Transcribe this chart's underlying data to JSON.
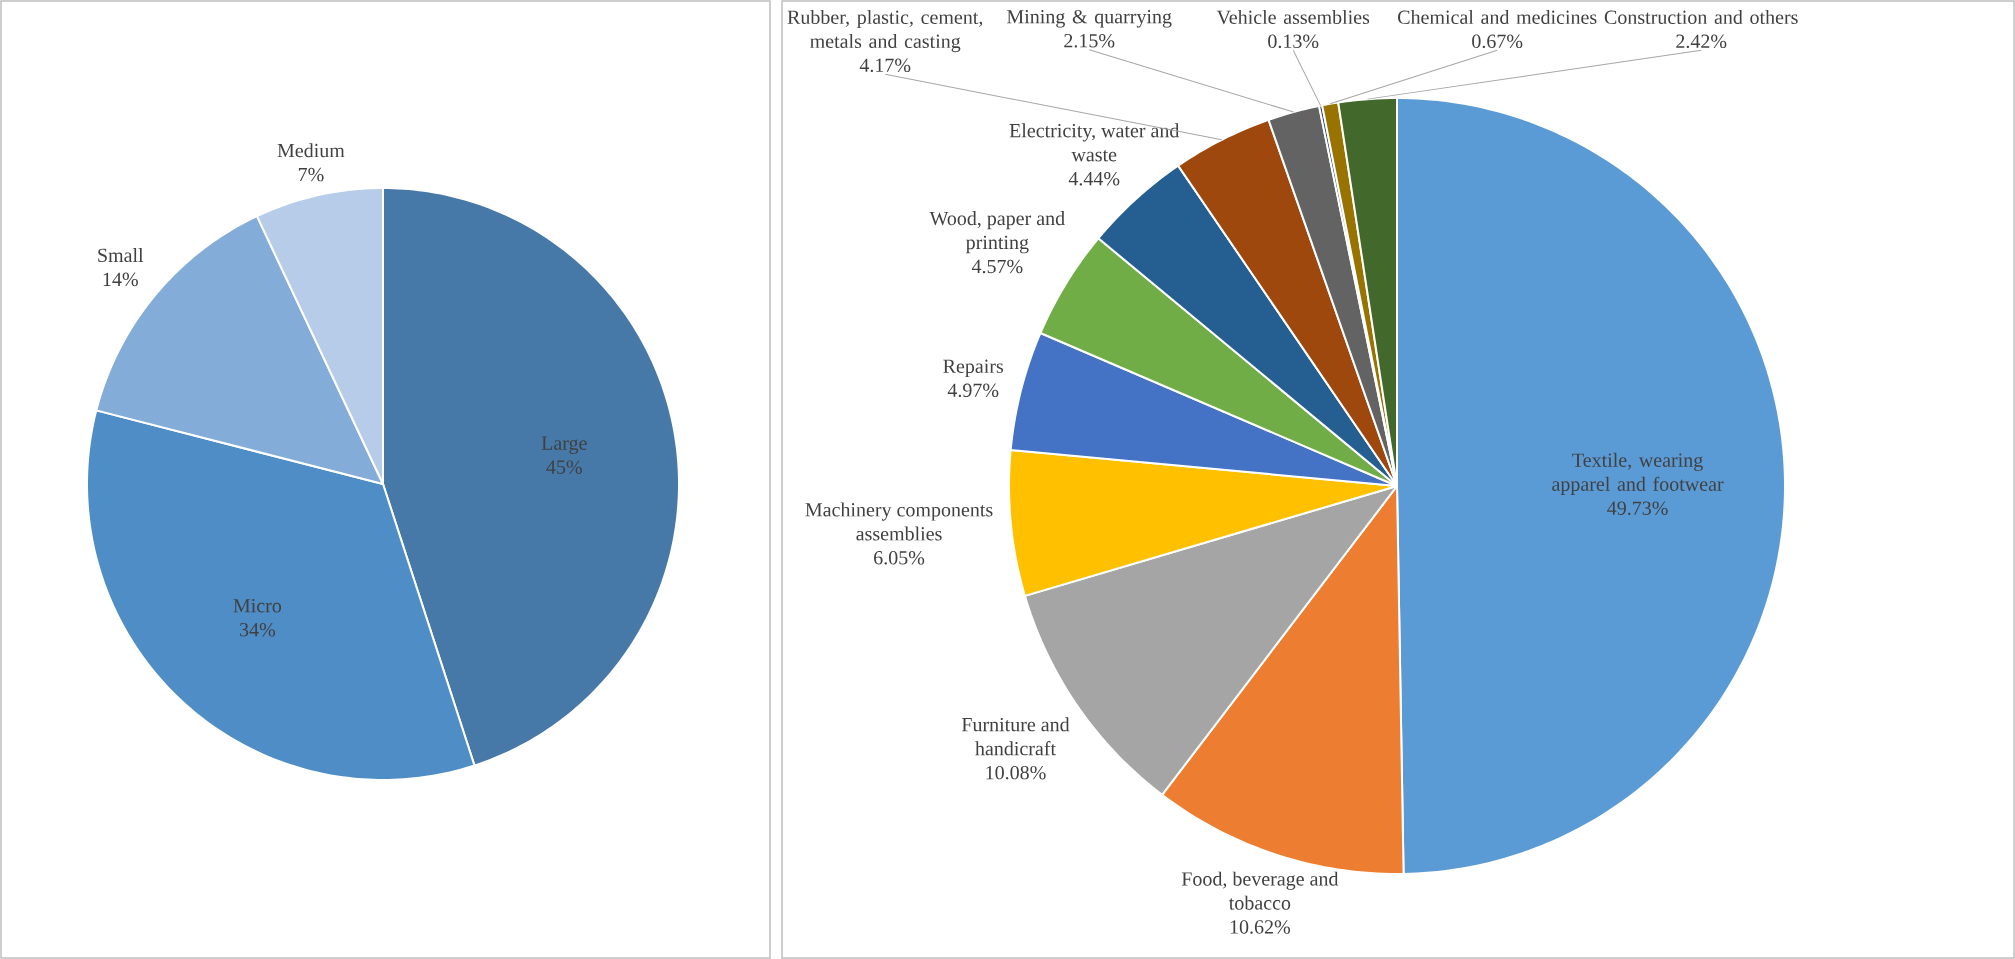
{
  "chart_data": [
    {
      "type": "pie",
      "categories": [
        "Large",
        "Micro",
        "Small",
        "Medium"
      ],
      "values": [
        45,
        34,
        14,
        7
      ],
      "colors": [
        "#4678a8",
        "#4f8dc6",
        "#83acd9",
        "#b7cce8"
      ],
      "value_labels": [
        "45%",
        "34%",
        "14%",
        "7%"
      ]
    },
    {
      "type": "pie",
      "categories": [
        "Textile, wearing apparel and footwear",
        "Food, beverage and tobacco",
        "Furniture and handicraft",
        "Machinery components assemblies",
        "Repairs",
        "Wood, paper and printing",
        "Electricity, water and waste",
        "Rubber, plastic, cement, metals and casting",
        "Mining & quarrying",
        "Vehicle assemblies",
        "Chemical and medicines",
        "Construction and others"
      ],
      "values": [
        49.73,
        10.62,
        10.08,
        6.05,
        4.97,
        4.57,
        4.44,
        4.17,
        2.15,
        0.13,
        0.67,
        2.42
      ],
      "colors": [
        "#5b9bd5",
        "#ed7d31",
        "#a5a5a5",
        "#ffc000",
        "#4472c4",
        "#70ad47",
        "#255e91",
        "#9e480e",
        "#636363",
        "#264478",
        "#997300",
        "#43682b"
      ],
      "value_labels": [
        "49.73%",
        "10.62%",
        "10.08%",
        "6.05%",
        "4.97%",
        "4.57%",
        "4.44%",
        "4.17%",
        "2.15%",
        "0.13%",
        "0.67%",
        "2.42%"
      ]
    }
  ]
}
